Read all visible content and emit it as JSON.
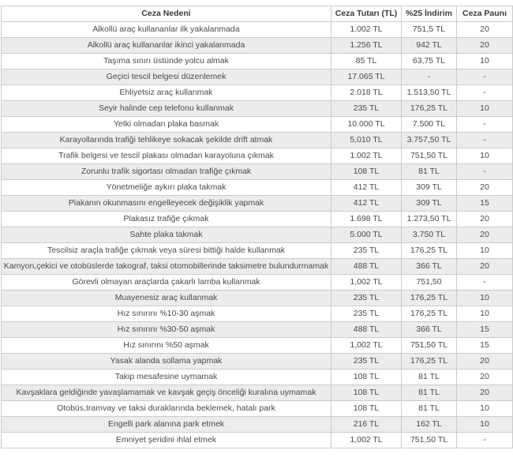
{
  "table": {
    "headers": [
      "Ceza Nedeni",
      "Ceza Tutarı (TL)",
      "%25 İndirim",
      "Ceza Paunı"
    ],
    "rows": [
      [
        "Alkollü araç kullananlar ilk yakalanmada",
        "1.002 TL",
        "751,5 TL",
        "20"
      ],
      [
        "Alkollü araç kullananlar ikinci yakalanmada",
        "1.256 TL",
        "942 TL",
        "20"
      ],
      [
        "Taşıma sınırı üstünde yolcu almak",
        "85 TL",
        "63,75 TL",
        "10"
      ],
      [
        "Geçici tescil belgesi düzenlemek",
        "17.065 TL",
        "-",
        "-"
      ],
      [
        "Ehliyetsiz araç kullanmak",
        "2.018 TL",
        "1.513,50 TL",
        "-"
      ],
      [
        "Seyir halinde cep telefonu kullanmak",
        "235 TL",
        "176,25 TL",
        "10"
      ],
      [
        "Yetki olmadan plaka basmak",
        "10.000 TL",
        "7.500 TL",
        "-"
      ],
      [
        "Karayollarında trafiği tehlikeye sokacak şekilde drift atmak",
        "5,010 TL",
        "3.757,50 TL",
        "-"
      ],
      [
        "Trafik belgesi ve tescil plakası olmadan karayoluna çıkmak",
        "1.002 TL",
        "751,50 TL",
        "10"
      ],
      [
        "Zorunlu trafik sigortası olmadan trafiğe çıkmak",
        "108 TL",
        "81 TL",
        "-"
      ],
      [
        "Yönetmeliğe aykırı plaka takmak",
        "412 TL",
        "309 TL",
        "20"
      ],
      [
        "Plakanın okunmasını engelleyecek değişiklik yapmak",
        "412 TL",
        "309 TL",
        "15"
      ],
      [
        "Plakasız trafiğe çıkmak",
        "1.698 TL",
        "1.273,50 TL",
        "20"
      ],
      [
        "Sahte plaka takmak",
        "5.000 TL",
        "3.750 TL",
        "20"
      ],
      [
        "Tescilsiz araçla trafiğe çıkmak veya süresi bittiği halde kullanmak",
        "235 TL",
        "176,25 TL",
        "10"
      ],
      [
        "Kamyon,çekici ve otobüslerde takograf, taksi otomobillerinde taksimetre bulundurmamak",
        "488 TL",
        "366 TL",
        "20"
      ],
      [
        "Görevli olmayan araçlarda çakarlı lamba kullanmak",
        "1,002 TL",
        "751,50",
        "-"
      ],
      [
        "Muayenesiz araç kullanmak",
        "235 TL",
        "176,25 TL",
        "10"
      ],
      [
        "Hız sınırını %10-30 aşmak",
        "235 TL",
        "176,25 TL",
        "10"
      ],
      [
        "Hız sınırını %30-50 aşmak",
        "488 TL",
        "366 TL",
        "15"
      ],
      [
        "Hız sınırını %50 aşmak",
        "1,002 TL",
        "751,50 TL",
        "15"
      ],
      [
        "Yasak alanda sollama yapmak",
        "235 TL",
        "176,25 TL",
        "20"
      ],
      [
        "Takip mesafesine uymamak",
        "108 TL",
        "81 TL",
        "20"
      ],
      [
        "Kavşaklara geldiğinde yavaşlamamak ve kavşak geçiş önceliği kuralına uymamak",
        "108 TL",
        "81 TL",
        "20"
      ],
      [
        "Otobüs,tramvay ve taksi duraklarında beklemek, hatalı park",
        "108 TL",
        "81 TL",
        "10"
      ],
      [
        "Engelli park alanına park etmek",
        "216 TL",
        "162 TL",
        "10"
      ],
      [
        "Emniyet şeridini ihlal etmek",
        "1,002 TL",
        "751,50 TL",
        "-"
      ]
    ],
    "colors": {
      "row_alt_background": "#ececec",
      "border": "#cbcbcb",
      "text": "#4a4a4a",
      "header_text": "#3a3a3a"
    }
  }
}
